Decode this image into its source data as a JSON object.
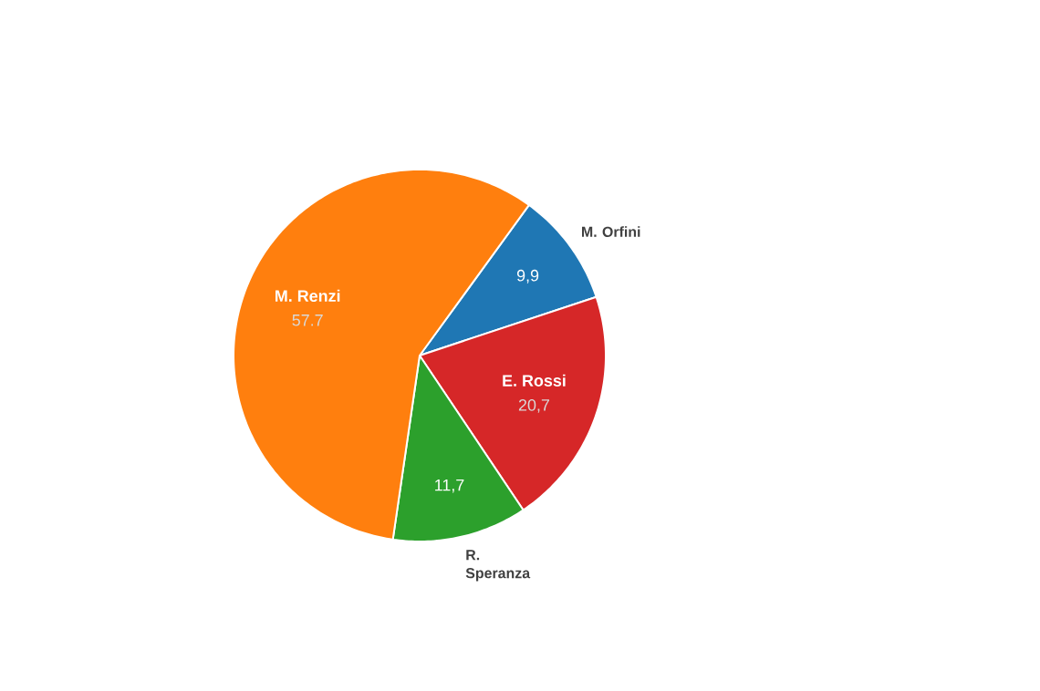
{
  "chart_data": {
    "type": "pie",
    "categories": [
      "M. Orfini",
      "E. Rossi",
      "R. Speranza",
      "M. Renzi"
    ],
    "values": [
      9.9,
      20.7,
      11.7,
      57.7
    ],
    "colors": [
      "#1f77b4",
      "#d62728",
      "#2ca02c",
      "#ff7f0e"
    ],
    "value_labels": [
      "9,9",
      "20,7",
      "11,7",
      "57.7"
    ]
  }
}
